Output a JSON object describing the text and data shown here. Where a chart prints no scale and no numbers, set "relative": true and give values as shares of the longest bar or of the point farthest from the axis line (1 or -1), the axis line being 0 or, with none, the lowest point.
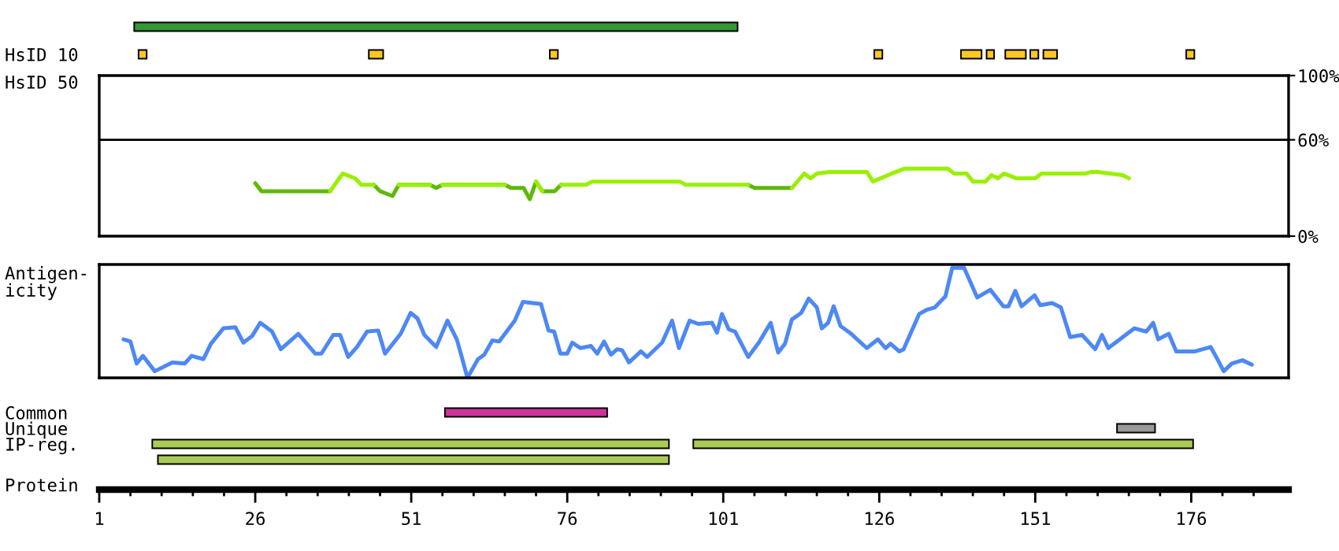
{
  "chart_data": [
    {
      "type": "bar",
      "orientation": "horizontal",
      "categories": [
        null,
        "HsID 10",
        "HsID 50"
      ],
      "xlim": [
        1,
        191.6
      ],
      "tick_labels": "y",
      "series": [
        {
          "color": "#339933",
          "values": [
            96.7,
            null,
            null
          ],
          "base": [
            6.6,
            null,
            null
          ]
        },
        {
          "color": "#ffc820",
          "values": [
            null,
            1.3,
            null
          ],
          "base": [
            null,
            7.3,
            null
          ]
        },
        {
          "color": "#ffc820",
          "values": [
            null,
            2.3,
            null
          ],
          "base": [
            null,
            44.2,
            null
          ]
        },
        {
          "color": "#ffc820",
          "values": [
            null,
            1.3,
            null
          ],
          "base": [
            null,
            73.2,
            null
          ]
        },
        {
          "color": "#ffc820",
          "values": [
            null,
            1.3,
            null
          ],
          "base": [
            null,
            125.2,
            null
          ]
        },
        {
          "color": "#ffc820",
          "values": [
            null,
            3.3,
            null
          ],
          "base": [
            null,
            139.1,
            null
          ]
        },
        {
          "color": "#ffc820",
          "values": [
            null,
            1.2,
            null
          ],
          "base": [
            null,
            143.2,
            null
          ]
        },
        {
          "color": "#ffc820",
          "values": [
            null,
            3.3,
            null
          ],
          "base": [
            null,
            146.2,
            null
          ]
        },
        {
          "color": "#ffc820",
          "values": [
            null,
            1.3,
            null
          ],
          "base": [
            null,
            150.2,
            null
          ]
        },
        {
          "color": "#ffc820",
          "values": [
            null,
            2.2,
            null
          ],
          "base": [
            null,
            152.3,
            null
          ]
        },
        {
          "color": "#ffc820",
          "values": [
            null,
            1.3,
            null
          ],
          "base": [
            null,
            175.2,
            null
          ]
        }
      ]
    },
    {
      "type": "line",
      "xlim": [
        1,
        191.6
      ],
      "ylim": [
        0,
        100
      ],
      "tick_labels": "y",
      "yticks": [
        {
          "value": 0,
          "label": "0%"
        },
        {
          "value": 60,
          "label": "60%"
        },
        {
          "value": 100,
          "label": "100%"
        }
      ],
      "ref_lines": [
        {
          "axis": "y",
          "value": 60,
          "color": "#000000"
        }
      ],
      "x": [
        26,
        27,
        38,
        40,
        42,
        43,
        45,
        46,
        48,
        49,
        54,
        55,
        56,
        66,
        67,
        69,
        70,
        71,
        72,
        74,
        75,
        79,
        80,
        94,
        95,
        105,
        106,
        112,
        114,
        115,
        116,
        118,
        124,
        125,
        128,
        130,
        137,
        138,
        140,
        141,
        143,
        144,
        145,
        146,
        148,
        151,
        152,
        159,
        160,
        161,
        163,
        165,
        166
      ],
      "series": [
        {
          "color": "#5fb80c",
          "values": [
            33,
            28,
            28,
            null,
            null,
            null,
            32,
            28,
            25,
            32,
            32,
            30,
            32,
            32,
            30,
            30,
            23,
            34,
            28,
            28,
            32,
            null,
            null,
            null,
            null,
            32,
            30,
            30,
            null,
            null,
            null,
            null,
            null,
            null,
            null,
            null,
            null,
            null,
            null,
            null,
            null,
            null,
            null,
            null,
            null,
            null,
            null,
            null,
            null,
            null,
            null,
            null,
            null
          ]
        },
        {
          "color": "#99f000",
          "values": [
            null,
            null,
            28,
            39,
            36,
            32,
            32,
            null,
            null,
            32,
            32,
            null,
            32,
            32,
            null,
            null,
            null,
            34,
            28,
            null,
            32,
            32,
            34,
            34,
            32,
            32,
            null,
            30,
            39,
            36,
            39,
            40,
            40,
            34,
            39,
            42,
            42,
            39,
            39,
            34,
            34,
            38,
            36,
            39,
            36,
            36,
            39,
            39,
            40,
            40,
            39,
            38,
            36
          ]
        }
      ]
    },
    {
      "type": "line",
      "relative": true,
      "ylabel": "Antigen-\nicity",
      "xlim": [
        1,
        191.6
      ],
      "tick_labels": false,
      "x": [
        4.9,
        6.0,
        7.0,
        8.0,
        9.9,
        12.7,
        14.7,
        15.8,
        17.7,
        18.9,
        20.9,
        22.8,
        24.1,
        25.5,
        26.8,
        28.7,
        30.1,
        32.9,
        35.6,
        36.6,
        38.5,
        39.6,
        40.9,
        42.3,
        43.9,
        45.7,
        46.8,
        49.3,
        50.9,
        52.0,
        53.1,
        55.0,
        56.8,
        58.3,
        59.0,
        60.0,
        61.7,
        62.7,
        64.0,
        65.1,
        67.6,
        68.9,
        71.8,
        73.0,
        73.9,
        74.9,
        76.0,
        76.8,
        78.1,
        79.8,
        80.8,
        81.9,
        83.0,
        84.0,
        84.8,
        85.9,
        87.8,
        88.8,
        91.2,
        92.0,
        92.8,
        93.9,
        95.6,
        97.0,
        99.2,
        100.0,
        100.8,
        101.9,
        102.9,
        105.0,
        106.7,
        108.6,
        109.8,
        110.9,
        112.0,
        113.5,
        114.7,
        116.0,
        116.8,
        117.8,
        118.7,
        119.8,
        121.5,
        124.0,
        125.8,
        127.0,
        127.8,
        129.2,
        129.9,
        132.4,
        133.7,
        134.9,
        136.6,
        137.7,
        139.6,
        141.7,
        143.8,
        145.9,
        146.7,
        147.8,
        148.8,
        150.9,
        151.8,
        153.7,
        155.1,
        156.6,
        158.5,
        160.6,
        161.7,
        162.7,
        166.9,
        168.8,
        169.9,
        170.7,
        172.4,
        173.6,
        176.6,
        179.1,
        180.0,
        181.2,
        182.5,
        184.2,
        185.7
      ],
      "series": [
        {
          "color": "#4d88f5",
          "values": [
            0.35,
            0.33,
            0.13,
            0.2,
            0.06,
            0.14,
            0.13,
            0.2,
            0.17,
            0.31,
            0.45,
            0.46,
            0.32,
            0.38,
            0.5,
            0.42,
            0.26,
            0.4,
            0.22,
            0.22,
            0.39,
            0.39,
            0.19,
            0.28,
            0.42,
            0.43,
            0.22,
            0.4,
            0.59,
            0.54,
            0.39,
            0.28,
            0.52,
            0.35,
            0.21,
            0,
            0.17,
            0.21,
            0.34,
            0.33,
            0.52,
            0.69,
            0.67,
            0.43,
            0.42,
            0.22,
            0.22,
            0.32,
            0.27,
            0.29,
            0.22,
            0.33,
            0.21,
            0.26,
            0.25,
            0.14,
            0.24,
            0.19,
            0.32,
            0.42,
            0.52,
            0.27,
            0.52,
            0.49,
            0.5,
            0.41,
            0.58,
            0.44,
            0.42,
            0.19,
            0.32,
            0.5,
            0.23,
            0.31,
            0.53,
            0.59,
            0.72,
            0.64,
            0.45,
            0.5,
            0.65,
            0.47,
            0.4,
            0.27,
            0.35,
            0.27,
            0.31,
            0.24,
            0.26,
            0.58,
            0.62,
            0.64,
            0.74,
            1,
            1,
            0.73,
            0.8,
            0.65,
            0.65,
            0.79,
            0.65,
            0.75,
            0.66,
            0.68,
            0.64,
            0.37,
            0.39,
            0.26,
            0.39,
            0.27,
            0.45,
            0.42,
            0.5,
            0.35,
            0.4,
            0.24,
            0.24,
            0.28,
            0.19,
            0.06,
            0.13,
            0.16,
            0.12
          ]
        }
      ]
    },
    {
      "type": "bar",
      "orientation": "horizontal",
      "categories": [
        "Common",
        "Unique",
        "IP-reg.",
        null
      ],
      "xlabel": "Protein",
      "xlim": [
        1,
        191.6
      ],
      "xticks": [
        1,
        {
          "value": 6,
          "label": null
        },
        {
          "value": 11,
          "label": null
        },
        {
          "value": 16,
          "label": null
        },
        {
          "value": 21,
          "label": null
        },
        26,
        {
          "value": 31,
          "label": null
        },
        {
          "value": 36,
          "label": null
        },
        {
          "value": 41,
          "label": null
        },
        {
          "value": 46,
          "label": null
        },
        51,
        {
          "value": 56,
          "label": null
        },
        {
          "value": 61,
          "label": null
        },
        {
          "value": 66,
          "label": null
        },
        {
          "value": 71,
          "label": null
        },
        76,
        {
          "value": 81,
          "label": null
        },
        {
          "value": 86,
          "label": null
        },
        {
          "value": 91,
          "label": null
        },
        {
          "value": 96,
          "label": null
        },
        101,
        {
          "value": 106,
          "label": null
        },
        {
          "value": 111,
          "label": null
        },
        {
          "value": 116,
          "label": null
        },
        {
          "value": 121,
          "label": null
        },
        126,
        {
          "value": 131,
          "label": null
        },
        {
          "value": 136,
          "label": null
        },
        {
          "value": 141,
          "label": null
        },
        {
          "value": 146,
          "label": null
        },
        151,
        {
          "value": 156,
          "label": null
        },
        {
          "value": 161,
          "label": null
        },
        {
          "value": 166,
          "label": null
        },
        {
          "value": 171,
          "label": null
        },
        176,
        {
          "value": 181,
          "label": null
        },
        {
          "value": 186,
          "label": null
        }
      ],
      "series": [
        {
          "color": "#cc3399",
          "values": [
            26.0,
            null,
            null,
            null
          ],
          "base": [
            56.4,
            null,
            null,
            null
          ]
        },
        {
          "color": "#999999",
          "values": [
            null,
            6.1,
            null,
            null
          ],
          "base": [
            null,
            164.1,
            null,
            null
          ]
        },
        {
          "color": "#aacc55",
          "values": [
            null,
            null,
            82.8,
            null
          ],
          "base": [
            null,
            null,
            9.5,
            null
          ]
        },
        {
          "color": "#aacc55",
          "values": [
            null,
            null,
            80.1,
            null
          ],
          "base": [
            null,
            null,
            96.2,
            null
          ]
        },
        {
          "color": "#aacc55",
          "values": [
            null,
            null,
            null,
            81.9
          ],
          "base": [
            null,
            null,
            null,
            10.4
          ]
        }
      ]
    }
  ]
}
